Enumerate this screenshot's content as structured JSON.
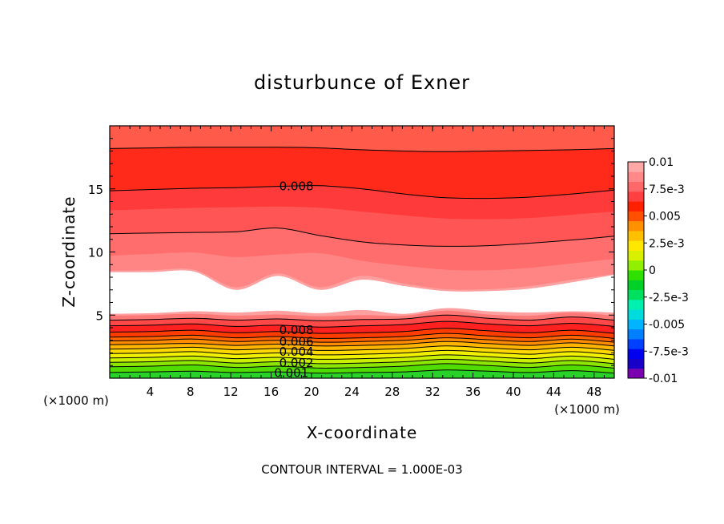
{
  "chart_data": {
    "type": "heatmap",
    "title": "disturbunce of Exner",
    "xlabel": "X-coordinate",
    "ylabel": "Z-coordinate",
    "x_unit": "(×1000 m)",
    "y_unit": "(×1000 m)",
    "xlim": [
      0,
      50
    ],
    "ylim": [
      0,
      20
    ],
    "x_ticks": [
      4,
      8,
      12,
      16,
      20,
      24,
      28,
      32,
      36,
      40,
      44,
      48
    ],
    "y_ticks": [
      5,
      10,
      15
    ],
    "footer": "CONTOUR INTERVAL = 1.000E-03",
    "colorbar": {
      "min": -0.01,
      "max": 0.01,
      "labels": [
        "0.01",
        "7.5e-3",
        "0.005",
        "2.5e-3",
        "0",
        "-2.5e-3",
        "-0.005",
        "-7.5e-3",
        "-0.01"
      ],
      "label_values": [
        0.01,
        0.0075,
        0.005,
        0.0025,
        0,
        -0.0025,
        -0.005,
        -0.0075,
        -0.01
      ],
      "colors": [
        "#7b00b0",
        "#1800c8",
        "#0000ee",
        "#0040ff",
        "#0080ff",
        "#00b4ff",
        "#00dcdc",
        "#00f0b0",
        "#00e060",
        "#00d028",
        "#30e000",
        "#90f000",
        "#d8f000",
        "#ffe800",
        "#ffc000",
        "#ff9000",
        "#ff5000",
        "#ff2000",
        "#ff4040",
        "#ff6868",
        "#ff8888",
        "#ffa8a8"
      ]
    },
    "contour_labels": [
      {
        "text": "0.008",
        "x": 18.5,
        "z": 15.2
      },
      {
        "text": "0.008",
        "x": 18.5,
        "z": 3.8
      },
      {
        "text": "0.006",
        "x": 18.5,
        "z": 2.9
      },
      {
        "text": "0.004",
        "x": 18.5,
        "z": 2.1
      },
      {
        "text": "0.002",
        "x": 18.5,
        "z": 1.2
      },
      {
        "text": "0.001",
        "x": 18.0,
        "z": 0.4
      }
    ],
    "bands": [
      {
        "value": 0.0065,
        "color": "#ff5a4a",
        "top": [
          20,
          20,
          20,
          20,
          20,
          20,
          20,
          20,
          20,
          20,
          20,
          20,
          20
        ]
      },
      {
        "value": 0.0075,
        "color": "#ff2a1a",
        "top": [
          18.2,
          18.25,
          18.3,
          18.3,
          18.3,
          18.25,
          18.1,
          18.0,
          17.95,
          18.0,
          18.05,
          18.1,
          18.2
        ]
      },
      {
        "value": 0.0079,
        "color": "#ff3a3a",
        "top": [
          14.85,
          14.95,
          15.05,
          15.1,
          15.2,
          15.25,
          15.0,
          14.6,
          14.3,
          14.25,
          14.35,
          14.6,
          14.9
        ]
      },
      {
        "value": 0.0076,
        "color": "#ff5555",
        "top": [
          13.3,
          13.4,
          13.5,
          13.55,
          13.6,
          13.5,
          13.2,
          12.9,
          12.65,
          12.6,
          12.7,
          12.95,
          13.2
        ]
      },
      {
        "value": 0.0073,
        "color": "#ff6d6d",
        "top": [
          11.45,
          11.5,
          11.55,
          11.6,
          11.9,
          11.3,
          10.8,
          10.55,
          10.45,
          10.5,
          10.7,
          10.95,
          11.25
        ]
      },
      {
        "value": 0.007,
        "color": "#ff8585",
        "top": [
          9.7,
          9.85,
          9.95,
          9.6,
          9.8,
          9.9,
          9.3,
          8.9,
          8.6,
          8.55,
          8.75,
          9.1,
          9.45
        ]
      },
      {
        "value": 0.0068,
        "color": "#ffa0a0",
        "top": [
          8.5,
          8.55,
          8.6,
          7.2,
          8.3,
          7.2,
          8.1,
          7.5,
          7.05,
          7.05,
          7.3,
          7.8,
          8.25
        ]
      },
      {
        "value": 0.0,
        "color": "#ffffff",
        "top": [
          8.4,
          8.4,
          8.45,
          7.0,
          8.1,
          7.0,
          7.8,
          7.3,
          6.9,
          6.9,
          7.1,
          7.6,
          8.2
        ]
      },
      {
        "value": 0.0068,
        "color": "#ffa0a0",
        "top": [
          5.1,
          5.15,
          5.3,
          5.2,
          5.35,
          5.15,
          5.4,
          5.1,
          5.55,
          5.3,
          5.2,
          5.3,
          5.2
        ]
      },
      {
        "value": 0.0072,
        "color": "#ff7878",
        "top": [
          4.95,
          5.0,
          5.1,
          4.95,
          5.05,
          4.9,
          5.0,
          4.95,
          5.35,
          5.05,
          4.95,
          5.2,
          4.95
        ]
      },
      {
        "value": 0.0078,
        "color": "#ff4848",
        "top": [
          4.6,
          4.65,
          4.75,
          4.6,
          4.7,
          4.55,
          4.65,
          4.7,
          5.0,
          4.75,
          4.6,
          4.85,
          4.6
        ]
      },
      {
        "value": 0.008,
        "color": "#ff2020",
        "top": [
          4.15,
          4.2,
          4.3,
          4.1,
          4.2,
          4.05,
          4.15,
          4.25,
          4.5,
          4.3,
          4.15,
          4.35,
          4.1
        ]
      },
      {
        "value": 0.0075,
        "color": "#ff3c00",
        "top": [
          3.65,
          3.7,
          3.8,
          3.6,
          3.7,
          3.55,
          3.6,
          3.7,
          3.95,
          3.75,
          3.6,
          3.8,
          3.55
        ]
      },
      {
        "value": 0.0065,
        "color": "#ff6400",
        "top": [
          3.25,
          3.3,
          3.4,
          3.2,
          3.3,
          3.15,
          3.2,
          3.3,
          3.55,
          3.35,
          3.2,
          3.4,
          3.15
        ]
      },
      {
        "value": 0.006,
        "color": "#ff8c00",
        "top": [
          2.95,
          3.0,
          3.1,
          2.9,
          3.0,
          2.85,
          2.9,
          3.0,
          3.2,
          3.05,
          2.9,
          3.1,
          2.85
        ]
      },
      {
        "value": 0.0055,
        "color": "#ffb400",
        "top": [
          2.65,
          2.7,
          2.75,
          2.6,
          2.7,
          2.55,
          2.6,
          2.7,
          2.9,
          2.75,
          2.6,
          2.8,
          2.55
        ]
      },
      {
        "value": 0.005,
        "color": "#ffd800",
        "top": [
          2.3,
          2.35,
          2.45,
          2.25,
          2.35,
          2.2,
          2.25,
          2.35,
          2.55,
          2.4,
          2.25,
          2.45,
          2.2
        ]
      },
      {
        "value": 0.0045,
        "color": "#f0f000",
        "top": [
          1.95,
          2.0,
          2.1,
          1.9,
          2.0,
          1.85,
          1.9,
          2.0,
          2.2,
          2.05,
          1.9,
          2.1,
          1.85
        ]
      },
      {
        "value": 0.004,
        "color": "#c8f000",
        "top": [
          1.6,
          1.65,
          1.75,
          1.55,
          1.65,
          1.5,
          1.55,
          1.65,
          1.85,
          1.7,
          1.55,
          1.75,
          1.5
        ]
      },
      {
        "value": 0.003,
        "color": "#8ce600",
        "top": [
          1.25,
          1.3,
          1.4,
          1.2,
          1.3,
          1.15,
          1.2,
          1.3,
          1.5,
          1.35,
          1.2,
          1.4,
          1.15
        ]
      },
      {
        "value": 0.002,
        "color": "#50dc00",
        "top": [
          0.9,
          0.95,
          1.05,
          0.85,
          0.95,
          0.8,
          0.85,
          0.95,
          1.15,
          1.0,
          0.85,
          1.05,
          0.8
        ]
      },
      {
        "value": 0.001,
        "color": "#28d228",
        "top": [
          0.45,
          0.5,
          0.55,
          0.45,
          0.5,
          0.4,
          0.45,
          0.5,
          0.65,
          0.55,
          0.45,
          0.6,
          0.4
        ]
      }
    ],
    "contours": [
      [
        18.2,
        18.25,
        18.3,
        18.3,
        18.3,
        18.25,
        18.1,
        18.0,
        17.95,
        18.0,
        18.05,
        18.1,
        18.2
      ],
      [
        14.85,
        14.95,
        15.05,
        15.1,
        15.2,
        15.25,
        15.0,
        14.6,
        14.3,
        14.25,
        14.35,
        14.6,
        14.9
      ],
      [
        11.45,
        11.5,
        11.55,
        11.6,
        11.9,
        11.3,
        10.8,
        10.55,
        10.45,
        10.5,
        10.7,
        10.95,
        11.25
      ],
      [
        4.6,
        4.65,
        4.75,
        4.6,
        4.7,
        4.55,
        4.65,
        4.7,
        5.0,
        4.75,
        4.6,
        4.85,
        4.6
      ],
      [
        4.15,
        4.2,
        4.3,
        4.1,
        4.2,
        4.05,
        4.15,
        4.25,
        4.5,
        4.3,
        4.15,
        4.35,
        4.1
      ],
      [
        3.65,
        3.7,
        3.8,
        3.6,
        3.7,
        3.55,
        3.6,
        3.7,
        3.95,
        3.75,
        3.6,
        3.8,
        3.55
      ],
      [
        3.25,
        3.3,
        3.4,
        3.2,
        3.3,
        3.15,
        3.2,
        3.3,
        3.55,
        3.35,
        3.2,
        3.4,
        3.15
      ],
      [
        2.95,
        3.0,
        3.1,
        2.9,
        3.0,
        2.85,
        2.9,
        3.0,
        3.2,
        3.05,
        2.9,
        3.1,
        2.85
      ],
      [
        2.65,
        2.7,
        2.75,
        2.6,
        2.7,
        2.55,
        2.6,
        2.7,
        2.9,
        2.75,
        2.6,
        2.8,
        2.55
      ],
      [
        2.3,
        2.35,
        2.45,
        2.25,
        2.35,
        2.2,
        2.25,
        2.35,
        2.55,
        2.4,
        2.25,
        2.45,
        2.2
      ],
      [
        1.95,
        2.0,
        2.1,
        1.9,
        2.0,
        1.85,
        1.9,
        2.0,
        2.2,
        2.05,
        1.9,
        2.1,
        1.85
      ],
      [
        1.6,
        1.65,
        1.75,
        1.55,
        1.65,
        1.5,
        1.55,
        1.65,
        1.85,
        1.7,
        1.55,
        1.75,
        1.5
      ],
      [
        1.25,
        1.3,
        1.4,
        1.2,
        1.3,
        1.15,
        1.2,
        1.3,
        1.5,
        1.35,
        1.2,
        1.4,
        1.15
      ],
      [
        0.9,
        0.95,
        1.05,
        0.85,
        0.95,
        0.8,
        0.85,
        0.95,
        1.15,
        1.0,
        0.85,
        1.05,
        0.8
      ],
      [
        0.45,
        0.5,
        0.55,
        0.45,
        0.5,
        0.4,
        0.45,
        0.5,
        0.65,
        0.55,
        0.45,
        0.6,
        0.4
      ]
    ]
  }
}
